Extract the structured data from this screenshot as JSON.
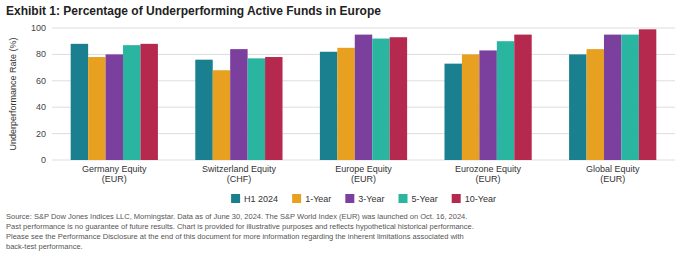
{
  "chart_data": {
    "type": "bar",
    "title": "Exhibit 1: Percentage of Underperforming Active Funds in Europe",
    "ylabel": "Underperformance Rate (%)",
    "categories": [
      "Germany Equity\n(EUR)",
      "Switzerland Equity\n(CHF)",
      "Europe Equity\n(EUR)",
      "Eurozone Equity\n(EUR)",
      "Global Equity\n(EUR)"
    ],
    "series": [
      {
        "name": "H1 2024",
        "color": "#1a7f8e",
        "values": [
          88,
          76,
          82,
          73,
          80
        ]
      },
      {
        "name": "1-Year",
        "color": "#e8a020",
        "values": [
          78,
          68,
          85,
          80,
          84
        ]
      },
      {
        "name": "3-Year",
        "color": "#7b3f9e",
        "values": [
          80,
          84,
          95,
          83,
          95
        ]
      },
      {
        "name": "5-Year",
        "color": "#2ab5a0",
        "values": [
          87,
          77,
          92,
          90,
          95
        ]
      },
      {
        "name": "10-Year",
        "color": "#b5294e",
        "values": [
          88,
          78,
          93,
          95,
          99
        ]
      }
    ],
    "ylim": [
      0,
      100
    ],
    "yticks": [
      0,
      20,
      40,
      60,
      80,
      100
    ],
    "grid": true,
    "legend": "bottom",
    "annotations": [
      "Source: S&P Dow Jones Indices LLC, Morningstar.  Data as of June 30, 2024.  The S&P World Index (EUR) was launched on Oct. 16, 2024.\nPast performance is no guarantee of future results.  Chart is provided for illustrative purposes and reflects hypothetical historical performance.\nPlease see the Performance Disclosure at the end of this document for more information regarding the inherent limitations associated with\nback-test performance."
    ]
  }
}
